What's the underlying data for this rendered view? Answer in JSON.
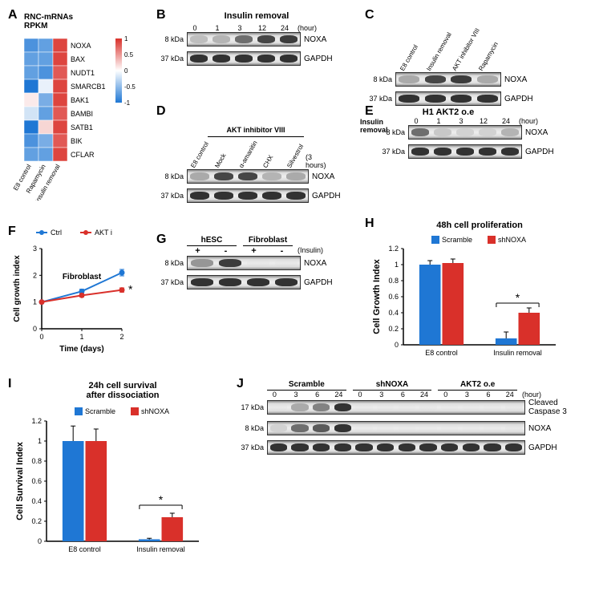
{
  "panelA": {
    "label": "A",
    "title1": "RNC-mRNAs",
    "title2": "RPKM",
    "rows": [
      "NOXA",
      "BAX",
      "NUDT1",
      "SMARCB1",
      "BAK1",
      "BAMBI",
      "SATB1",
      "BIK",
      "CFLAR"
    ],
    "cols": [
      "E8 control",
      "Rapamycin",
      "Insulin removal"
    ],
    "values": [
      [
        -0.8,
        -0.7,
        0.9
      ],
      [
        -0.7,
        -0.7,
        0.9
      ],
      [
        -0.7,
        -0.8,
        0.8
      ],
      [
        -1.0,
        -0.1,
        0.9
      ],
      [
        0.1,
        -0.6,
        0.9
      ],
      [
        -0.2,
        -0.7,
        0.8
      ],
      [
        -1.0,
        0.2,
        0.9
      ],
      [
        -0.8,
        -0.6,
        0.8
      ],
      [
        -0.7,
        -0.7,
        0.9
      ]
    ],
    "scale_ticks": [
      "1",
      "0.5",
      "0",
      "-0.5",
      "-1"
    ],
    "scale_colors": [
      "#d9302a",
      "#f4a69f",
      "#ffffff",
      "#9fd4f4",
      "#1f77d4"
    ],
    "row_fontsize": 9,
    "col_fontsize": 8
  },
  "panelB": {
    "label": "B",
    "title": "Insulin removal",
    "lanes": [
      "0",
      "1",
      "3",
      "12",
      "24"
    ],
    "lane_unit": "(hour)",
    "rows": [
      {
        "mw": "8 kDa",
        "protein": "NOXA",
        "intensity": [
          0.2,
          0.25,
          0.6,
          0.8,
          0.85
        ]
      },
      {
        "mw": "37 kDa",
        "protein": "GAPDH",
        "intensity": [
          0.9,
          0.9,
          0.9,
          0.9,
          0.9
        ]
      }
    ]
  },
  "panelC": {
    "label": "C",
    "lanes_rot": [
      "E8 control",
      "Insulin removal",
      "AKT inhibitor VIII",
      "Rapamycin"
    ],
    "rows": [
      {
        "mw": "8 kDa",
        "protein": "NOXA",
        "intensity": [
          0.3,
          0.8,
          0.85,
          0.3
        ]
      },
      {
        "mw": "37 kDa",
        "protein": "GAPDH",
        "intensity": [
          0.9,
          0.9,
          0.9,
          0.9
        ]
      }
    ]
  },
  "panelD": {
    "label": "D",
    "overline": "AKT inhibitor VIII",
    "lanes_rot": [
      "E8 control",
      "Mock",
      "α-amanitin",
      "CHX",
      "Silvestrol"
    ],
    "lane_unit": "(3 hours)",
    "rows": [
      {
        "mw": "8 kDa",
        "protein": "NOXA",
        "intensity": [
          0.3,
          0.8,
          0.8,
          0.25,
          0.3
        ]
      },
      {
        "mw": "37 kDa",
        "protein": "GAPDH",
        "intensity": [
          0.9,
          0.9,
          0.9,
          0.9,
          0.9
        ]
      }
    ]
  },
  "panelE": {
    "label": "E",
    "title": "H1 AKT2 o.e",
    "side_label": "Insulin\nremoval",
    "lanes": [
      "0",
      "1",
      "3",
      "12",
      "24"
    ],
    "lane_unit": "(hour)",
    "rows": [
      {
        "mw": "8 kDa",
        "protein": "NOXA",
        "intensity": [
          0.6,
          0.15,
          0.1,
          0.1,
          0.25
        ]
      },
      {
        "mw": "37 kDa",
        "protein": "GAPDH",
        "intensity": [
          0.9,
          0.9,
          0.9,
          0.9,
          0.9
        ]
      }
    ]
  },
  "panelF": {
    "label": "F",
    "title": "Fibroblast",
    "legend": [
      {
        "name": "Ctrl",
        "color": "#1f77d4",
        "marker": "circle"
      },
      {
        "name": "AKT i",
        "color": "#d9302a",
        "marker": "circle"
      }
    ],
    "xlabel": "Time  (days)",
    "ylabel": "Cell growth index",
    "x": [
      0,
      1,
      2
    ],
    "series": {
      "Ctrl": [
        1.0,
        1.4,
        2.1
      ],
      "AKTi": [
        1.0,
        1.25,
        1.45
      ]
    },
    "err": {
      "Ctrl": [
        0,
        0.08,
        0.12
      ],
      "AKTi": [
        0,
        0.06,
        0.08
      ]
    },
    "ylim": [
      0,
      3
    ],
    "yticks": [
      0,
      1,
      2,
      3
    ],
    "sig_marker": "*",
    "axis_color": "#000000",
    "fontsize": 10
  },
  "panelG": {
    "label": "G",
    "groups": [
      "hESC",
      "Fibroblast"
    ],
    "sub": [
      "+",
      "-",
      "+",
      "-"
    ],
    "sub_label": "(Insulin)",
    "rows": [
      {
        "mw": "8 kDa",
        "protein": "NOXA",
        "intensity": [
          0.4,
          0.85,
          0.05,
          0.05
        ]
      },
      {
        "mw": "37 kDa",
        "protein": "GAPDH",
        "intensity": [
          0.9,
          0.9,
          0.9,
          0.9
        ]
      }
    ]
  },
  "panelH": {
    "label": "H",
    "title": "48h cell proliferation",
    "legend": [
      {
        "name": "Scramble",
        "color": "#1f77d4"
      },
      {
        "name": "shNOXA",
        "color": "#d9302a"
      }
    ],
    "groups": [
      "E8 control",
      "Insulin removal"
    ],
    "values": {
      "Scramble": [
        1.0,
        0.08
      ],
      "shNOXA": [
        1.02,
        0.4
      ]
    },
    "err": {
      "Scramble": [
        0.05,
        0.08
      ],
      "shNOXA": [
        0.05,
        0.06
      ]
    },
    "ylabel": "Cell Growth Index",
    "ylim": [
      0,
      1.2
    ],
    "yticks": [
      0,
      0.2,
      0.4,
      0.6,
      0.8,
      1.0,
      1.2
    ],
    "sig_marker": "*",
    "bar_width": 0.35
  },
  "panelI": {
    "label": "I",
    "title": "24h cell survival\nafter dissociation",
    "legend": [
      {
        "name": "Scramble",
        "color": "#1f77d4"
      },
      {
        "name": "shNOXA",
        "color": "#d9302a"
      }
    ],
    "groups": [
      "E8 control",
      "Insulin removal"
    ],
    "values": {
      "Scramble": [
        1.0,
        0.02
      ],
      "shNOXA": [
        1.0,
        0.24
      ]
    },
    "err": {
      "Scramble": [
        0.15,
        0.01
      ],
      "shNOXA": [
        0.12,
        0.04
      ]
    },
    "ylabel": "Cell Survival Index",
    "ylim": [
      0,
      1.2
    ],
    "yticks": [
      0,
      0.2,
      0.4,
      0.6,
      0.8,
      1.0,
      1.2
    ],
    "sig_marker": "*"
  },
  "panelJ": {
    "label": "J",
    "groups": [
      "Scramble",
      "shNOXA",
      "AKT2 o.e"
    ],
    "lanes": [
      "0",
      "3",
      "6",
      "24",
      "0",
      "3",
      "6",
      "24",
      "0",
      "3",
      "6",
      "24"
    ],
    "lane_unit": "(hour)",
    "rows": [
      {
        "mw": "17 kDa",
        "protein": "Cleaved\nCaspase 3",
        "intensity": [
          0.05,
          0.3,
          0.5,
          0.9,
          0.02,
          0.02,
          0.02,
          0.05,
          0.02,
          0.02,
          0.02,
          0.05
        ]
      },
      {
        "mw": "8 kDa",
        "protein": "NOXA",
        "intensity": [
          0.1,
          0.6,
          0.7,
          0.9,
          0.02,
          0.02,
          0.02,
          0.02,
          0.02,
          0.02,
          0.02,
          0.05
        ]
      },
      {
        "mw": "37 kDa",
        "protein": "GAPDH",
        "intensity": [
          0.9,
          0.9,
          0.9,
          0.9,
          0.9,
          0.9,
          0.9,
          0.9,
          0.9,
          0.9,
          0.9,
          0.9
        ]
      }
    ]
  },
  "colors": {
    "blue": "#1f77d4",
    "red": "#d9302a",
    "tick": "#000000",
    "grid": "#e0e0e0",
    "band_bg": "#d8d8d8"
  }
}
